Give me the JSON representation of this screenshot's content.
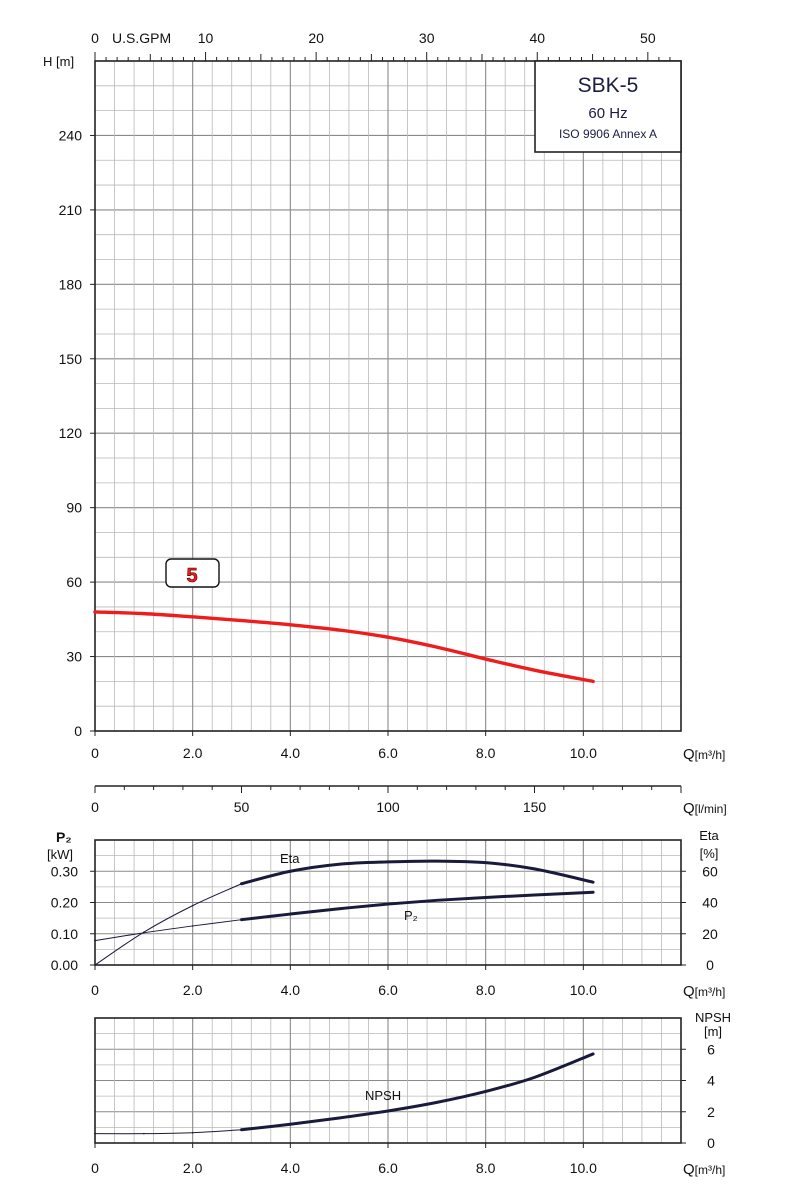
{
  "chart_data": [
    {
      "type": "line",
      "panel": "head",
      "title_box": {
        "model": "SBK-5",
        "frequency": "60 Hz",
        "standard": "ISO 9906 Annex A"
      },
      "ylabel": "H [m]",
      "xlabel": "Q[m³/h]",
      "top_axis_label": "U.S.GPM",
      "top_axis": {
        "lim": [
          0,
          53
        ],
        "ticks": [
          "0",
          "10",
          "20",
          "30",
          "40",
          "50"
        ],
        "tick_values": [
          0,
          10,
          20,
          30,
          40,
          50
        ]
      },
      "xlim": [
        0,
        12
      ],
      "ylim": [
        0,
        270
      ],
      "xticks": [
        "0",
        "2.0",
        "4.0",
        "6.0",
        "8.0",
        "10.0"
      ],
      "xtick_values": [
        0,
        2,
        4,
        6,
        8,
        10
      ],
      "yticks": [
        "0",
        "30",
        "60",
        "90",
        "120",
        "150",
        "180",
        "210",
        "240"
      ],
      "ytick_values": [
        0,
        30,
        60,
        90,
        120,
        150,
        180,
        210,
        240
      ],
      "grid": true,
      "series": [
        {
          "name": "5",
          "color": "#ee1c1c",
          "x": [
            0,
            1,
            2,
            3,
            4,
            5,
            6,
            7,
            8,
            9,
            10.2
          ],
          "y": [
            48,
            47.3,
            46,
            44.5,
            42.8,
            40.7,
            37.8,
            33.8,
            29,
            24.5,
            20
          ]
        }
      ]
    },
    {
      "type": "axis",
      "panel": "flow-lmin",
      "xlabel": "Q[l/min]",
      "xlim": [
        0,
        200
      ],
      "xticks": [
        "0",
        "50",
        "100",
        "150"
      ],
      "xtick_values": [
        0,
        50,
        100,
        150
      ]
    },
    {
      "type": "line",
      "panel": "power-efficiency",
      "ylabel": "P₂ [kW]",
      "ylabel_right": "Eta [%]",
      "xlabel": "Q[m³/h]",
      "xlim": [
        0,
        12
      ],
      "ylim": [
        0,
        0.4
      ],
      "ylim_right": [
        0,
        80
      ],
      "xticks": [
        "0",
        "2.0",
        "4.0",
        "6.0",
        "8.0",
        "10.0"
      ],
      "xtick_values": [
        0,
        2,
        4,
        6,
        8,
        10
      ],
      "yticks": [
        "0.00",
        "0.10",
        "0.20",
        "0.30"
      ],
      "ytick_values": [
        0,
        0.1,
        0.2,
        0.3
      ],
      "yticks_right": [
        "0",
        "20",
        "40",
        "60"
      ],
      "ytick_values_right": [
        0,
        20,
        40,
        60
      ],
      "grid": true,
      "series": [
        {
          "name": "Eta",
          "axis": "right",
          "color": "#1a1a3c",
          "x": [
            0,
            1,
            2,
            3,
            4,
            5,
            6,
            7,
            8,
            9,
            10.2
          ],
          "y": [
            0,
            21,
            38,
            52,
            60,
            64.5,
            66,
            66.5,
            65.5,
            61.5,
            53
          ]
        },
        {
          "name": "P₂",
          "axis": "left",
          "color": "#1a1a3c",
          "x": [
            0,
            1,
            2,
            3,
            4,
            5,
            6,
            7,
            8,
            9,
            10.2
          ],
          "y": [
            0.078,
            0.103,
            0.125,
            0.145,
            0.163,
            0.18,
            0.195,
            0.207,
            0.216,
            0.224,
            0.233
          ]
        }
      ]
    },
    {
      "type": "line",
      "panel": "npsh",
      "ylabel_right": "NPSH [m]",
      "xlabel": "Q[m³/h]",
      "xlim": [
        0,
        12
      ],
      "ylim": [
        0,
        8
      ],
      "xticks": [
        "0",
        "2.0",
        "4.0",
        "6.0",
        "8.0",
        "10.0"
      ],
      "xtick_values": [
        0,
        2,
        4,
        6,
        8,
        10
      ],
      "yticks_right": [
        "0",
        "2",
        "4",
        "6"
      ],
      "ytick_values_right": [
        0,
        2,
        4,
        6
      ],
      "grid": true,
      "series": [
        {
          "name": "NPSH",
          "color": "#1a1a3c",
          "x": [
            0,
            1,
            2,
            3,
            4,
            5,
            6,
            7,
            8,
            9,
            10.2
          ],
          "y": [
            0.6,
            0.6,
            0.66,
            0.85,
            1.2,
            1.6,
            2.05,
            2.6,
            3.3,
            4.2,
            5.7
          ]
        }
      ]
    }
  ]
}
